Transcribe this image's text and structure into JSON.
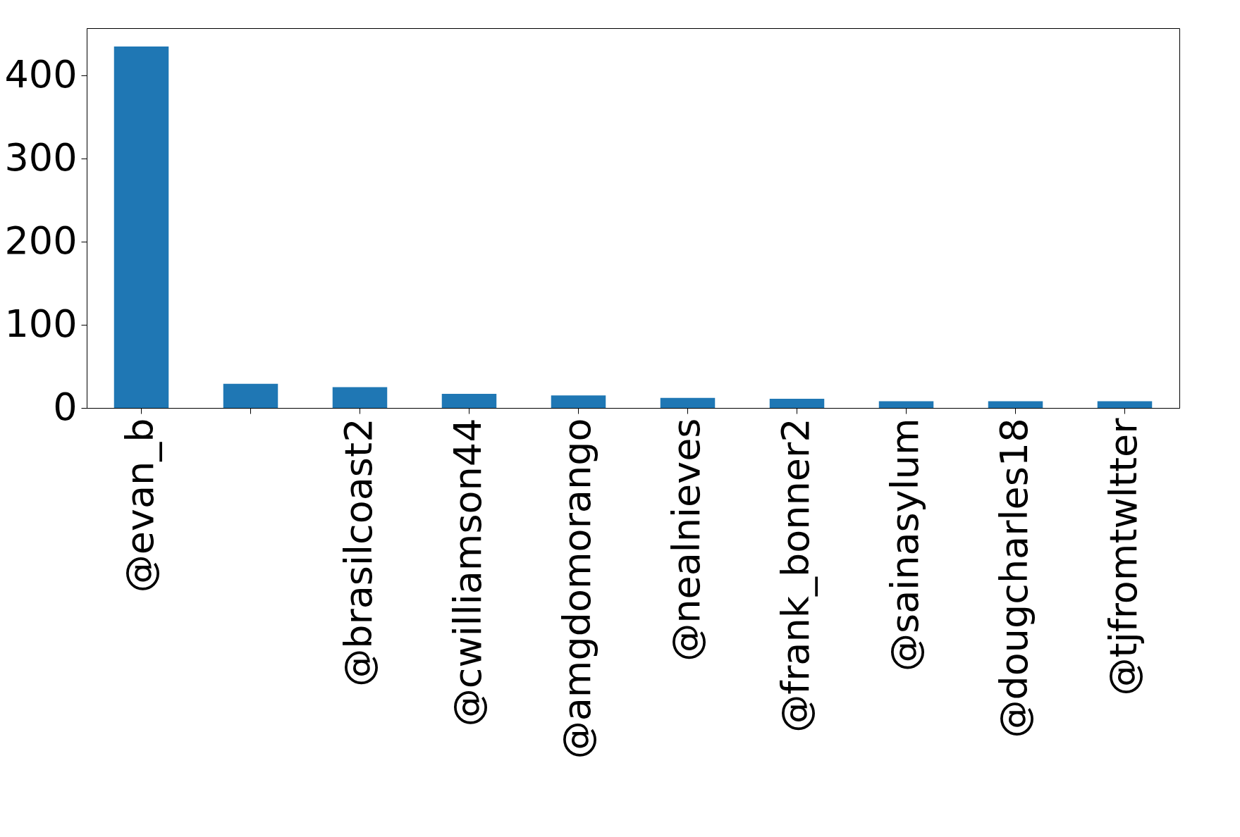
{
  "chart_data": {
    "type": "bar",
    "categories": [
      "@evan_b",
      null,
      "@brasilcoast2",
      "@cwilliamson44",
      "@amgdomorango",
      "@nealnieves",
      "@frank_bonner2",
      "@sainasylum",
      "@dougcharles18",
      "@tjfromtwltter"
    ],
    "values": [
      435,
      29,
      25,
      17,
      15,
      12,
      11,
      8,
      8,
      8
    ],
    "color": "#1f77b4",
    "ylim": [
      0,
      457
    ],
    "yticks": [
      0,
      100,
      200,
      300,
      400
    ],
    "grid": false
  }
}
